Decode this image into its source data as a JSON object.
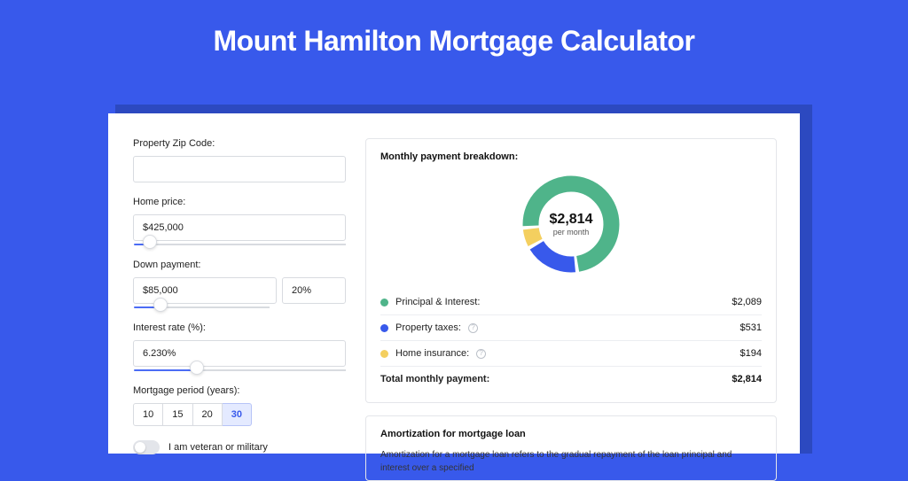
{
  "page": {
    "title": "Mount Hamilton Mortgage Calculator",
    "bg_color": "#3859eb"
  },
  "form": {
    "zip": {
      "label": "Property Zip Code:",
      "value": ""
    },
    "home_price": {
      "label": "Home price:",
      "value": "$425,000",
      "slider_pct": 8
    },
    "down_payment": {
      "label": "Down payment:",
      "amount": "$85,000",
      "percent": "20%",
      "slider_pct": 20
    },
    "interest_rate": {
      "label": "Interest rate (%):",
      "value": "6.230%",
      "slider_pct": 30
    },
    "mortgage_period": {
      "label": "Mortgage period (years):",
      "options": [
        "10",
        "15",
        "20",
        "30"
      ],
      "selected": "30"
    },
    "veteran": {
      "label": "I am veteran or military",
      "checked": false
    }
  },
  "breakdown": {
    "title": "Monthly payment breakdown:",
    "donut": {
      "center_value": "$2,814",
      "center_sub": "per month",
      "segments": [
        {
          "label": "Principal & Interest:",
          "value": "$2,089",
          "amount": 2089,
          "color": "#4fb48a"
        },
        {
          "label": "Property taxes:",
          "value": "$531",
          "amount": 531,
          "color": "#3859eb",
          "has_info": true
        },
        {
          "label": "Home insurance:",
          "value": "$194",
          "amount": 194,
          "color": "#f4cf5f",
          "has_info": true
        }
      ],
      "ring_thickness": 18,
      "gap_deg": 1.2
    },
    "total": {
      "label": "Total monthly payment:",
      "value": "$2,814"
    }
  },
  "amortization": {
    "title": "Amortization for mortgage loan",
    "body": "Amortization for a mortgage loan refers to the gradual repayment of the loan principal and interest over a specified"
  }
}
